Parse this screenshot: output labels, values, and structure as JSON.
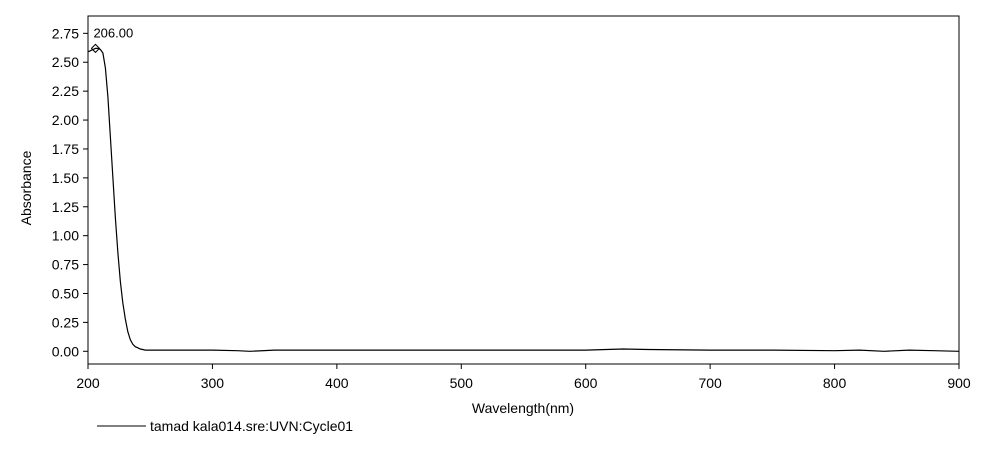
{
  "chart_data": {
    "type": "line",
    "title": "",
    "xlabel": "Wavelength(nm)",
    "ylabel": "Absorbance",
    "xlim": [
      200,
      900
    ],
    "ylim": [
      -0.11,
      2.9
    ],
    "xticks": [
      200,
      300,
      400,
      500,
      600,
      700,
      800,
      900
    ],
    "xtick_labels": [
      "200",
      "300",
      "400",
      "500",
      "600",
      "700",
      "800",
      "900"
    ],
    "yticks": [
      0.0,
      0.25,
      0.5,
      0.75,
      1.0,
      1.25,
      1.5,
      1.75,
      2.0,
      2.25,
      2.5,
      2.75
    ],
    "ytick_labels": [
      "0.00",
      "0.25",
      "0.50",
      "0.75",
      "1.00",
      "1.25",
      "1.50",
      "1.75",
      "2.00",
      "2.25",
      "2.50",
      "2.75"
    ],
    "grid": false,
    "legend_position": "bottom-left",
    "line_color": "#000000",
    "series": [
      {
        "name": "tamad kala014.sre:UVN:Cycle01",
        "x": [
          200,
          202,
          204,
          206,
          208,
          210,
          212,
          214,
          216,
          218,
          220,
          222,
          224,
          226,
          228,
          230,
          232,
          234,
          236,
          238,
          240,
          242,
          244,
          246,
          250,
          260,
          280,
          300,
          320,
          330,
          350,
          380,
          400,
          450,
          500,
          550,
          600,
          630,
          650,
          700,
          750,
          800,
          820,
          840,
          860,
          880,
          900
        ],
        "y": [
          2.59,
          2.6,
          2.61,
          2.62,
          2.62,
          2.61,
          2.58,
          2.45,
          2.2,
          1.85,
          1.5,
          1.15,
          0.85,
          0.6,
          0.42,
          0.28,
          0.17,
          0.1,
          0.06,
          0.04,
          0.03,
          0.02,
          0.015,
          0.01,
          0.01,
          0.01,
          0.01,
          0.01,
          0.005,
          0.0,
          0.01,
          0.01,
          0.01,
          0.01,
          0.01,
          0.01,
          0.01,
          0.02,
          0.015,
          0.01,
          0.01,
          0.005,
          0.01,
          0.0,
          0.01,
          0.005,
          0.0
        ]
      }
    ],
    "annotations": [
      {
        "text": "206.00",
        "x": 206,
        "y": 2.62
      }
    ]
  }
}
